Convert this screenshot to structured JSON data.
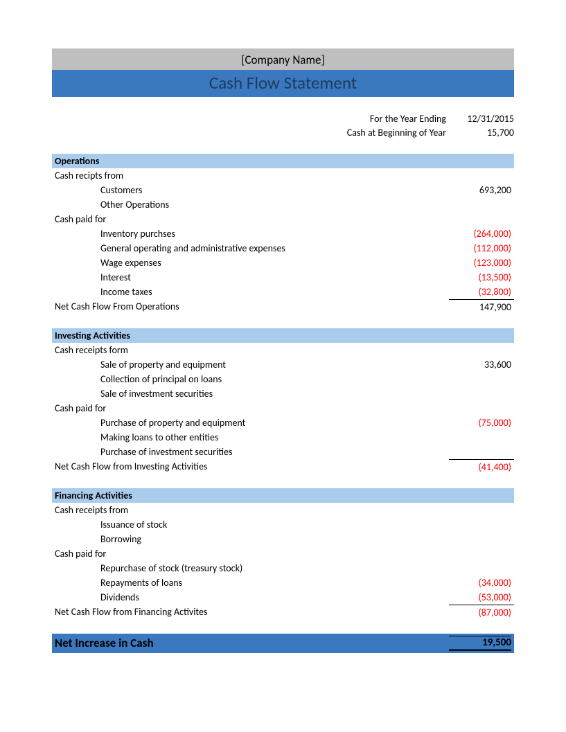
{
  "colors": {
    "company_bar_bg": "#bfbfbf",
    "title_bar_bg": "#3a78c0",
    "title_bar_text": "#1f3a5f",
    "section_header_bg": "#a9cbec",
    "section_header_text": "#000000",
    "negative_text": "#ff0000",
    "net_bar_bg": "#3a78c0",
    "net_bar_text": "#000000"
  },
  "header": {
    "company": "[Company Name]",
    "title": "Cash Flow Statement"
  },
  "meta": {
    "year_ending_label": "For the Year Ending",
    "year_ending_value": "12/31/2015",
    "beginning_cash_label": "Cash at Beginning of Year",
    "beginning_cash_value": "15,700"
  },
  "operations": {
    "header": "Operations",
    "receipts_label": "Cash recipts from",
    "receipts": [
      {
        "label": "Customers",
        "amount": "693,200",
        "negative": false
      },
      {
        "label": "Other Operations",
        "amount": "",
        "negative": false
      }
    ],
    "paid_label": "Cash paid for",
    "paid": [
      {
        "label": "Inventory purchses",
        "amount": "(264,000)",
        "negative": true
      },
      {
        "label": "General operating and administrative expenses",
        "amount": "(112,000)",
        "negative": true
      },
      {
        "label": "Wage expenses",
        "amount": "(123,000)",
        "negative": true
      },
      {
        "label": "Interest",
        "amount": "(13,500)",
        "negative": true
      },
      {
        "label": "Income taxes",
        "amount": "(32,800)",
        "negative": true
      }
    ],
    "subtotal_label": "Net Cash Flow From Operations",
    "subtotal_amount": "147,900",
    "subtotal_negative": false
  },
  "investing": {
    "header": "Investing Activities",
    "receipts_label": "Cash receipts form",
    "receipts": [
      {
        "label": "Sale of property and equipment",
        "amount": "33,600",
        "negative": false
      },
      {
        "label": "Collection of principal on loans",
        "amount": "",
        "negative": false
      },
      {
        "label": "Sale of investment securities",
        "amount": "",
        "negative": false
      }
    ],
    "paid_label": "Cash paid for",
    "paid": [
      {
        "label": "Purchase of property and equipment",
        "amount": "(75,000)",
        "negative": true
      },
      {
        "label": "Making loans to other entities",
        "amount": "",
        "negative": false
      },
      {
        "label": "Purchase of investment securities",
        "amount": "",
        "negative": false
      }
    ],
    "subtotal_label": "Net Cash Flow from Investing Activities",
    "subtotal_amount": "(41,400)",
    "subtotal_negative": true
  },
  "financing": {
    "header": "Financing Activities",
    "receipts_label": "Cash receipts from",
    "receipts": [
      {
        "label": "Issuance of stock",
        "amount": "",
        "negative": false
      },
      {
        "label": "Borrowing",
        "amount": "",
        "negative": false
      }
    ],
    "paid_label": "Cash paid for",
    "paid": [
      {
        "label": "Repurchase of stock (treasury stock)",
        "amount": "",
        "negative": false
      },
      {
        "label": "Repayments of loans",
        "amount": "(34,000)",
        "negative": true
      },
      {
        "label": "Dividends",
        "amount": "(53,000)",
        "negative": true
      }
    ],
    "subtotal_label": "Net Cash Flow from Financing Activites",
    "subtotal_amount": "(87,000)",
    "subtotal_negative": true
  },
  "net": {
    "label": "Net Increase in Cash",
    "amount": "19,500"
  }
}
